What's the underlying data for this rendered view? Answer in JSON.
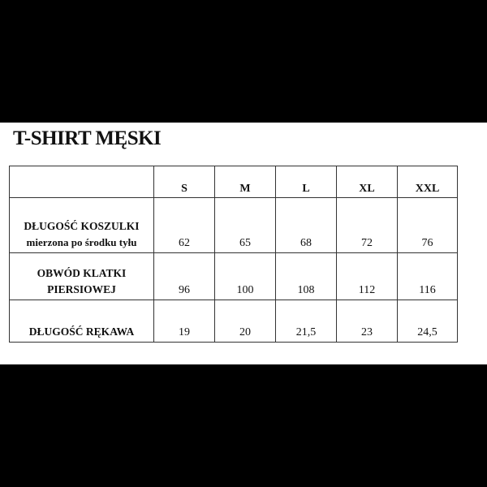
{
  "title": "T-SHIRT MĘSKI",
  "table": {
    "headers": [
      "",
      "S",
      "M",
      "L",
      "XL",
      "XXL"
    ],
    "rows": [
      {
        "label_line1": "DŁUGOŚĆ KOSZULKI",
        "label_line2": "mierzona po środku tyłu",
        "values": [
          "62",
          "65",
          "68",
          "72",
          "76"
        ]
      },
      {
        "label_line1": "OBWÓD KLATKI",
        "label_line2": "PIERSIOWEJ",
        "values": [
          "96",
          "100",
          "108",
          "112",
          "116"
        ]
      },
      {
        "label_line1": "DŁUGOŚĆ RĘKAWA",
        "label_line2": "",
        "values": [
          "19",
          "20",
          "21,5",
          "23",
          "24,5"
        ]
      }
    ]
  }
}
